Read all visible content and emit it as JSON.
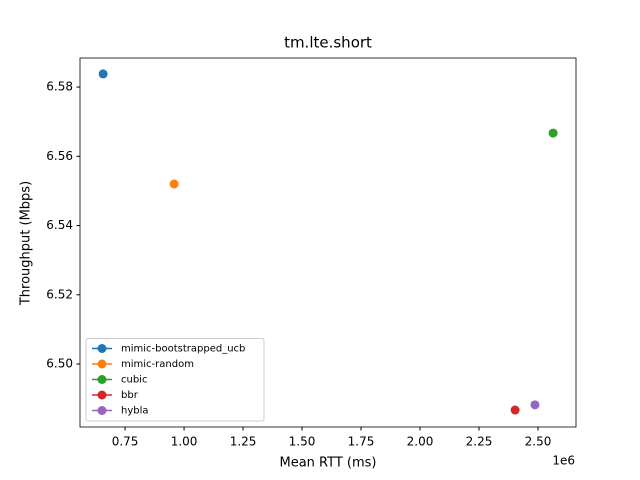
{
  "chart_data": {
    "type": "scatter",
    "title": "tm.lte.short",
    "x_label": "Mean RTT (ms)",
    "y_label": "Throughput (Mbps)",
    "x_offset_label": "1e6",
    "xlim": [
      0.559,
      2.661
    ],
    "ylim": [
      6.4818,
      6.5884
    ],
    "xticks": [
      0.75,
      {
        "value": 1.0,
        "label": "1.00"
      },
      1.25,
      {
        "value": 1.5,
        "label": "1.50"
      },
      1.75,
      {
        "value": 2.0,
        "label": "2.00"
      },
      2.25,
      {
        "value": 2.5,
        "label": "2.50"
      }
    ],
    "yticks": [
      {
        "value": 6.5,
        "label": "6.50"
      },
      6.52,
      6.54,
      6.56,
      6.58
    ],
    "legend": "lower left",
    "series": [
      {
        "name": "mimic-bootstrapped_ucb",
        "color": "#1f77b4",
        "x": [
          0.657
        ],
        "values": [
          6.5838
        ]
      },
      {
        "name": "mimic-random",
        "color": "#ff7f0e",
        "x": [
          0.958
        ],
        "values": [
          6.552
        ]
      },
      {
        "name": "cubic",
        "color": "#2ca02c",
        "x": [
          2.564
        ],
        "values": [
          6.5667
        ]
      },
      {
        "name": "bbr",
        "color": "#d62728",
        "x": [
          2.403
        ],
        "values": [
          6.4867
        ]
      },
      {
        "name": "hybla",
        "color": "#9467bd",
        "x": [
          2.487
        ],
        "values": [
          6.4882
        ]
      }
    ]
  }
}
